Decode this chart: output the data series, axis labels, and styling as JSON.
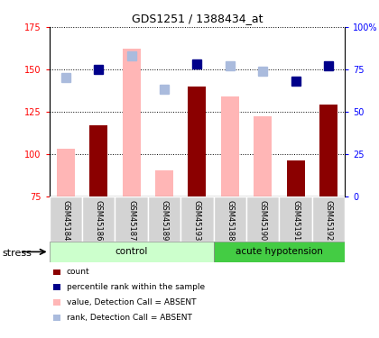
{
  "title": "GDS1251 / 1388434_at",
  "samples": [
    "GSM45184",
    "GSM45186",
    "GSM45187",
    "GSM45189",
    "GSM45193",
    "GSM45188",
    "GSM45190",
    "GSM45191",
    "GSM45192"
  ],
  "group_labels": [
    "control",
    "acute hypotension"
  ],
  "bar_values": [
    null,
    117,
    null,
    null,
    140,
    null,
    null,
    96,
    129
  ],
  "bar_absent_values": [
    103,
    null,
    162,
    90,
    null,
    134,
    122,
    null,
    null
  ],
  "rank_present": [
    null,
    150,
    null,
    null,
    153,
    null,
    null,
    143,
    152
  ],
  "rank_absent": [
    145,
    null,
    158,
    138,
    null,
    152,
    149,
    null,
    null
  ],
  "ylim_left": [
    75,
    175
  ],
  "ylim_right": [
    0,
    100
  ],
  "yticks_left": [
    75,
    100,
    125,
    150,
    175
  ],
  "yticks_right": [
    0,
    25,
    50,
    75,
    100
  ],
  "ytick_labels_left": [
    "75",
    "100",
    "125",
    "150",
    "175"
  ],
  "ytick_labels_right": [
    "0",
    "25",
    "50",
    "75",
    "100%"
  ],
  "bar_color": "#8B0000",
  "bar_absent_color": "#FFB6B6",
  "rank_present_color": "#00008B",
  "rank_absent_color": "#AABBDD",
  "group_control_color": "#CCFFCC",
  "group_hypotension_color": "#44CC44",
  "sample_bg_color": "#D3D3D3",
  "legend_items": [
    "count",
    "percentile rank within the sample",
    "value, Detection Call = ABSENT",
    "rank, Detection Call = ABSENT"
  ],
  "legend_colors": [
    "#8B0000",
    "#00008B",
    "#FFB6B6",
    "#AABBDD"
  ],
  "stress_label": "stress",
  "bar_width": 0.55,
  "marker_size": 7
}
